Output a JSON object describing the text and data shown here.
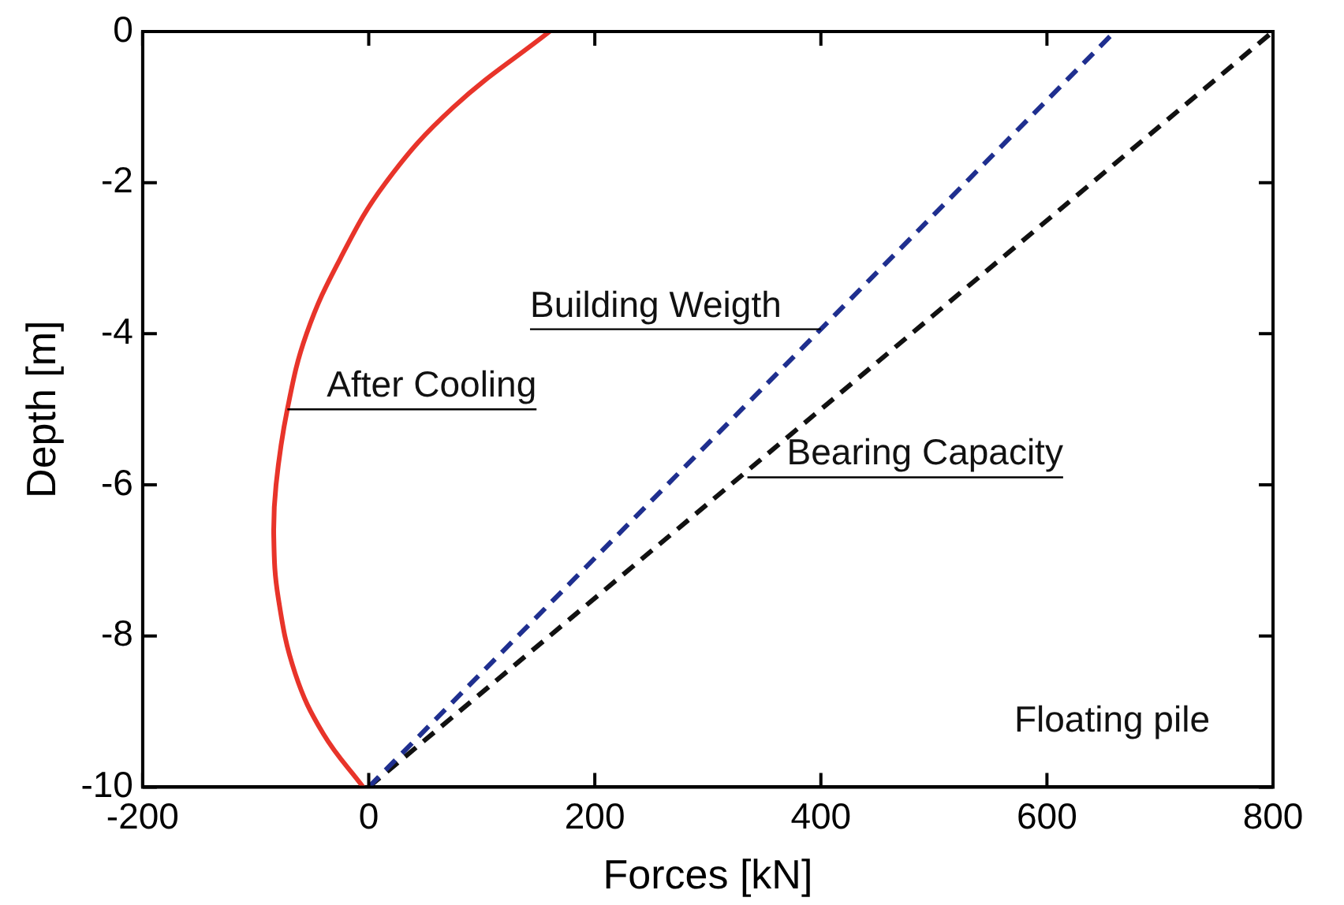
{
  "chart_data": {
    "type": "line",
    "xlabel": "Forces [kN]",
    "ylabel": "Depth [m]",
    "xlim": [
      -200,
      800
    ],
    "xticks": [
      -200,
      0,
      200,
      400,
      600,
      800
    ],
    "ylim": [
      -10,
      0
    ],
    "yticks": [
      -10,
      -8,
      -6,
      -4,
      -2,
      0
    ],
    "grid": false,
    "legend": false,
    "marker": "none",
    "series": [
      {
        "color": "#e8342a",
        "line_style": "solid",
        "x": [
          160,
          75,
          15,
          -25,
          -55,
          -72,
          -82,
          -84,
          -80,
          -65,
          -40,
          -5
        ],
        "values": [
          0,
          -1,
          -2,
          -3,
          -4,
          -5,
          -6,
          -6.7,
          -7.5,
          -8.5,
          -9.3,
          -10
        ]
      },
      {
        "color": "#1f2f8f",
        "line_style": "dashed",
        "x": [
          0,
          660
        ],
        "values": [
          -10,
          0
        ]
      },
      {
        "color": "#111111",
        "line_style": "dashed",
        "x": [
          0,
          800
        ],
        "values": [
          -10,
          0
        ]
      }
    ],
    "annotations": [
      {
        "text": "Building Weigth",
        "x": 400,
        "y": -3.94
      },
      {
        "text": "After Cooling",
        "x": -72,
        "y": -5
      },
      {
        "text": "Bearing Capacity",
        "x": 335,
        "y": -5.9
      },
      "Floating pile"
    ]
  }
}
